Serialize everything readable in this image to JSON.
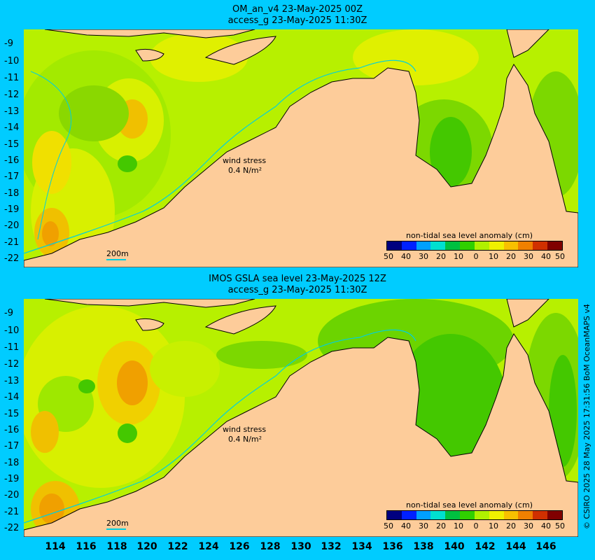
{
  "top_panel": {
    "title_line1": "OM_an_v4  23-May-2025 00Z",
    "title_line2": "access_g 23-May-2025 11:30Z",
    "wind_label": "wind stress",
    "wind_value": "0.4 N/m²",
    "scale_label": "200m",
    "colorbar_title": "non-tidal sea level anomaly (cm)"
  },
  "bottom_panel": {
    "title_line1": "IMOS GSLA sea level  23-May-2025 12Z",
    "title_line2": "access_g 23-May-2025 11:30Z",
    "wind_label": "wind stress",
    "wind_value": "0.4 N/m²",
    "scale_label": "200m",
    "colorbar_title": "non-tidal sea level anomaly (cm)"
  },
  "latitude_ticks": [
    "-9",
    "-10",
    "-11",
    "-12",
    "-13",
    "-14",
    "-15",
    "-16",
    "-17",
    "-18",
    "-19",
    "-20",
    "-21",
    "-22"
  ],
  "longitude_ticks": [
    "114",
    "116",
    "118",
    "120",
    "122",
    "124",
    "126",
    "128",
    "130",
    "132",
    "134",
    "136",
    "138",
    "140",
    "142",
    "144",
    "146"
  ],
  "colorbar_ticks": [
    "50",
    "40",
    "30",
    "20",
    "10",
    "0",
    "10",
    "20",
    "30",
    "40",
    "50"
  ],
  "colorbar_colors": [
    "#00007f",
    "#0020ff",
    "#00a0ff",
    "#00e0d0",
    "#00c040",
    "#30d000",
    "#b0f000",
    "#f0f000",
    "#f8c000",
    "#f08000",
    "#d03000",
    "#800000"
  ],
  "land_color": "#fdcc9a",
  "ocean_mid_color": "#b7f000",
  "credit": "© CSIRO 2025   28 May 2025 17:31:56 BoM OceanMAPS v4"
}
